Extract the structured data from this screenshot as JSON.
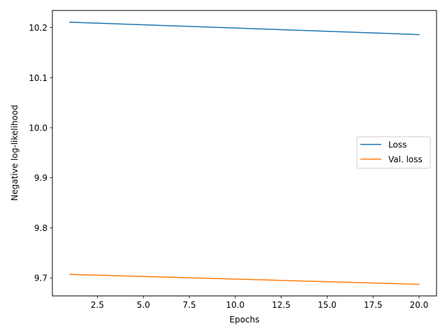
{
  "chart_data": {
    "type": "line",
    "title": "",
    "xlabel": "Epochs",
    "ylabel": "Negative log-likelihood",
    "xlim": [
      0.05,
      20.95
    ],
    "ylim": [
      9.664,
      10.2342
    ],
    "xticks": [
      2.5,
      5.0,
      7.5,
      10.0,
      12.5,
      15.0,
      17.5,
      20.0
    ],
    "xtick_labels": [
      "2.5",
      "5.0",
      "7.5",
      "10.0",
      "12.5",
      "15.0",
      "17.5",
      "20.0"
    ],
    "yticks": [
      9.7,
      9.8,
      9.9,
      10.0,
      10.1,
      10.2
    ],
    "ytick_labels": [
      "9.7",
      "9.8",
      "9.9",
      "10.0",
      "10.1",
      "10.2"
    ],
    "grid": false,
    "legend_position": "center-right",
    "series": [
      {
        "name": "Loss",
        "color": "#1f77b4",
        "x": [
          1,
          2,
          3,
          4,
          5,
          6,
          7,
          8,
          9,
          10,
          11,
          12,
          13,
          14,
          15,
          16,
          17,
          18,
          19,
          20
        ],
        "values": [
          10.2108,
          10.2095,
          10.2082,
          10.2069,
          10.2056,
          10.2043,
          10.203,
          10.2017,
          10.2004,
          10.1991,
          10.1978,
          10.1965,
          10.1952,
          10.1939,
          10.1926,
          10.1913,
          10.19,
          10.1887,
          10.1874,
          10.186
        ]
      },
      {
        "name": "Val. loss",
        "color": "#ff7f0e",
        "x": [
          1,
          2,
          3,
          4,
          5,
          6,
          7,
          8,
          9,
          10,
          11,
          12,
          13,
          14,
          15,
          16,
          17,
          18,
          19,
          20
        ],
        "values": [
          9.707,
          9.706,
          9.7049,
          9.7039,
          9.7028,
          9.7018,
          9.7008,
          9.6997,
          9.6987,
          9.6976,
          9.6966,
          9.6955,
          9.6945,
          9.6934,
          9.6924,
          9.6913,
          9.6903,
          9.6892,
          9.6882,
          9.6871
        ]
      }
    ]
  }
}
